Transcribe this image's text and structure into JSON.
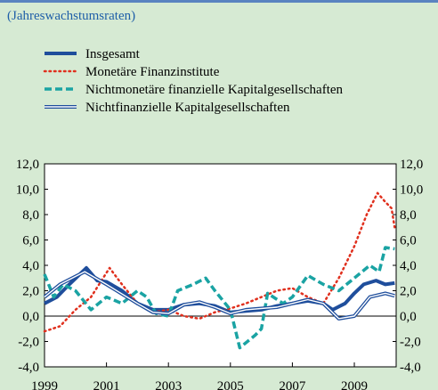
{
  "chart_data": {
    "type": "line",
    "subtitle": "(Jahreswachstumsraten)",
    "xlim": [
      1999,
      2010.35
    ],
    "xticks": [
      1999,
      2001,
      2003,
      2005,
      2007,
      2009
    ],
    "ylim": [
      -4,
      12
    ],
    "yticks": [
      {
        "value": -4,
        "label": "-4,0"
      },
      {
        "value": -2,
        "label": "-2,0"
      },
      {
        "value": 0,
        "label": "0,0"
      },
      {
        "value": 2,
        "label": "2,0"
      },
      {
        "value": 4,
        "label": "4,0"
      },
      {
        "value": 6,
        "label": "6,0"
      },
      {
        "value": 8,
        "label": "8,0"
      },
      {
        "value": 10,
        "label": "10,0"
      },
      {
        "value": 12,
        "label": "12,0"
      }
    ],
    "series": [
      {
        "name": "Insgesamt",
        "color": "#1f4e9c",
        "style": "thick",
        "x": [
          1999,
          1999.4,
          1999.8,
          2000.35,
          2000.7,
          2001,
          2001.5,
          2002,
          2002.5,
          2003,
          2003.5,
          2004,
          2004.5,
          2005,
          2005.5,
          2006,
          2006.5,
          2007,
          2007.5,
          2008,
          2008.3,
          2008.7,
          2009,
          2009.3,
          2009.7,
          2010,
          2010.3
        ],
        "values": [
          1.0,
          1.5,
          2.5,
          3.8,
          2.8,
          2.7,
          2.0,
          1.0,
          0.5,
          0.5,
          0.9,
          1.0,
          0.8,
          0.3,
          0.4,
          0.5,
          0.8,
          1.0,
          1.2,
          1.0,
          0.5,
          1.0,
          1.8,
          2.5,
          2.8,
          2.5,
          2.6
        ]
      },
      {
        "name": "Monetäre Finanzinstitute",
        "color": "#e0301e",
        "style": "dotted",
        "x": [
          1999,
          1999.5,
          2000,
          2000.5,
          2001.1,
          2001.5,
          2002,
          2002.5,
          2003,
          2003.5,
          2004,
          2004.5,
          2005,
          2005.5,
          2006,
          2006.5,
          2007,
          2007.5,
          2008,
          2008.5,
          2009,
          2009.4,
          2009.75,
          2010,
          2010.2,
          2010.3
        ],
        "values": [
          -1.2,
          -0.8,
          0.5,
          1.5,
          3.8,
          2.5,
          1.0,
          0.3,
          0.5,
          0.0,
          -0.2,
          0.3,
          0.6,
          1.0,
          1.5,
          2.0,
          2.2,
          1.5,
          1.0,
          3.0,
          5.5,
          8.0,
          9.7,
          9.0,
          8.5,
          7.0
        ]
      },
      {
        "name": "Nichtmonetäre finanzielle Kapitalgesellschaften",
        "color": "#1aa3a3",
        "style": "dashed",
        "x": [
          1999,
          1999.3,
          1999.6,
          2000,
          2000.5,
          2001,
          2001.5,
          2002,
          2002.3,
          2002.6,
          2003,
          2003.3,
          2003.8,
          2004.2,
          2004.5,
          2005,
          2005.3,
          2005.8,
          2006,
          2006.2,
          2006.7,
          2007,
          2007.5,
          2008,
          2008.5,
          2009,
          2009.5,
          2009.8,
          2010,
          2010.3
        ],
        "values": [
          3.3,
          1.5,
          2.5,
          2.0,
          0.5,
          1.5,
          1.0,
          2.0,
          1.5,
          0.2,
          0.0,
          2.0,
          2.5,
          3.0,
          2.0,
          0.5,
          -2.5,
          -1.5,
          -1.0,
          1.8,
          1.0,
          1.5,
          3.2,
          2.5,
          2.0,
          3.0,
          4.0,
          3.5,
          5.4,
          5.3
        ]
      },
      {
        "name": "Nichtfinanzielle Kapitalgesellschaften",
        "color": "#1f4e9c",
        "style": "double",
        "x": [
          1999,
          1999.5,
          2000.3,
          2001,
          2002,
          2002.5,
          2003,
          2003.5,
          2004,
          2004.5,
          2005,
          2005.5,
          2006.5,
          2007,
          2007.5,
          2008,
          2008.5,
          2009,
          2009.5,
          2010,
          2010.3
        ],
        "values": [
          1.5,
          2.5,
          3.5,
          2.5,
          1.0,
          0.3,
          0.2,
          0.9,
          1.1,
          0.7,
          0.2,
          0.5,
          0.7,
          1.0,
          1.3,
          1.0,
          -0.2,
          0.0,
          1.5,
          1.8,
          1.6
        ]
      }
    ]
  }
}
